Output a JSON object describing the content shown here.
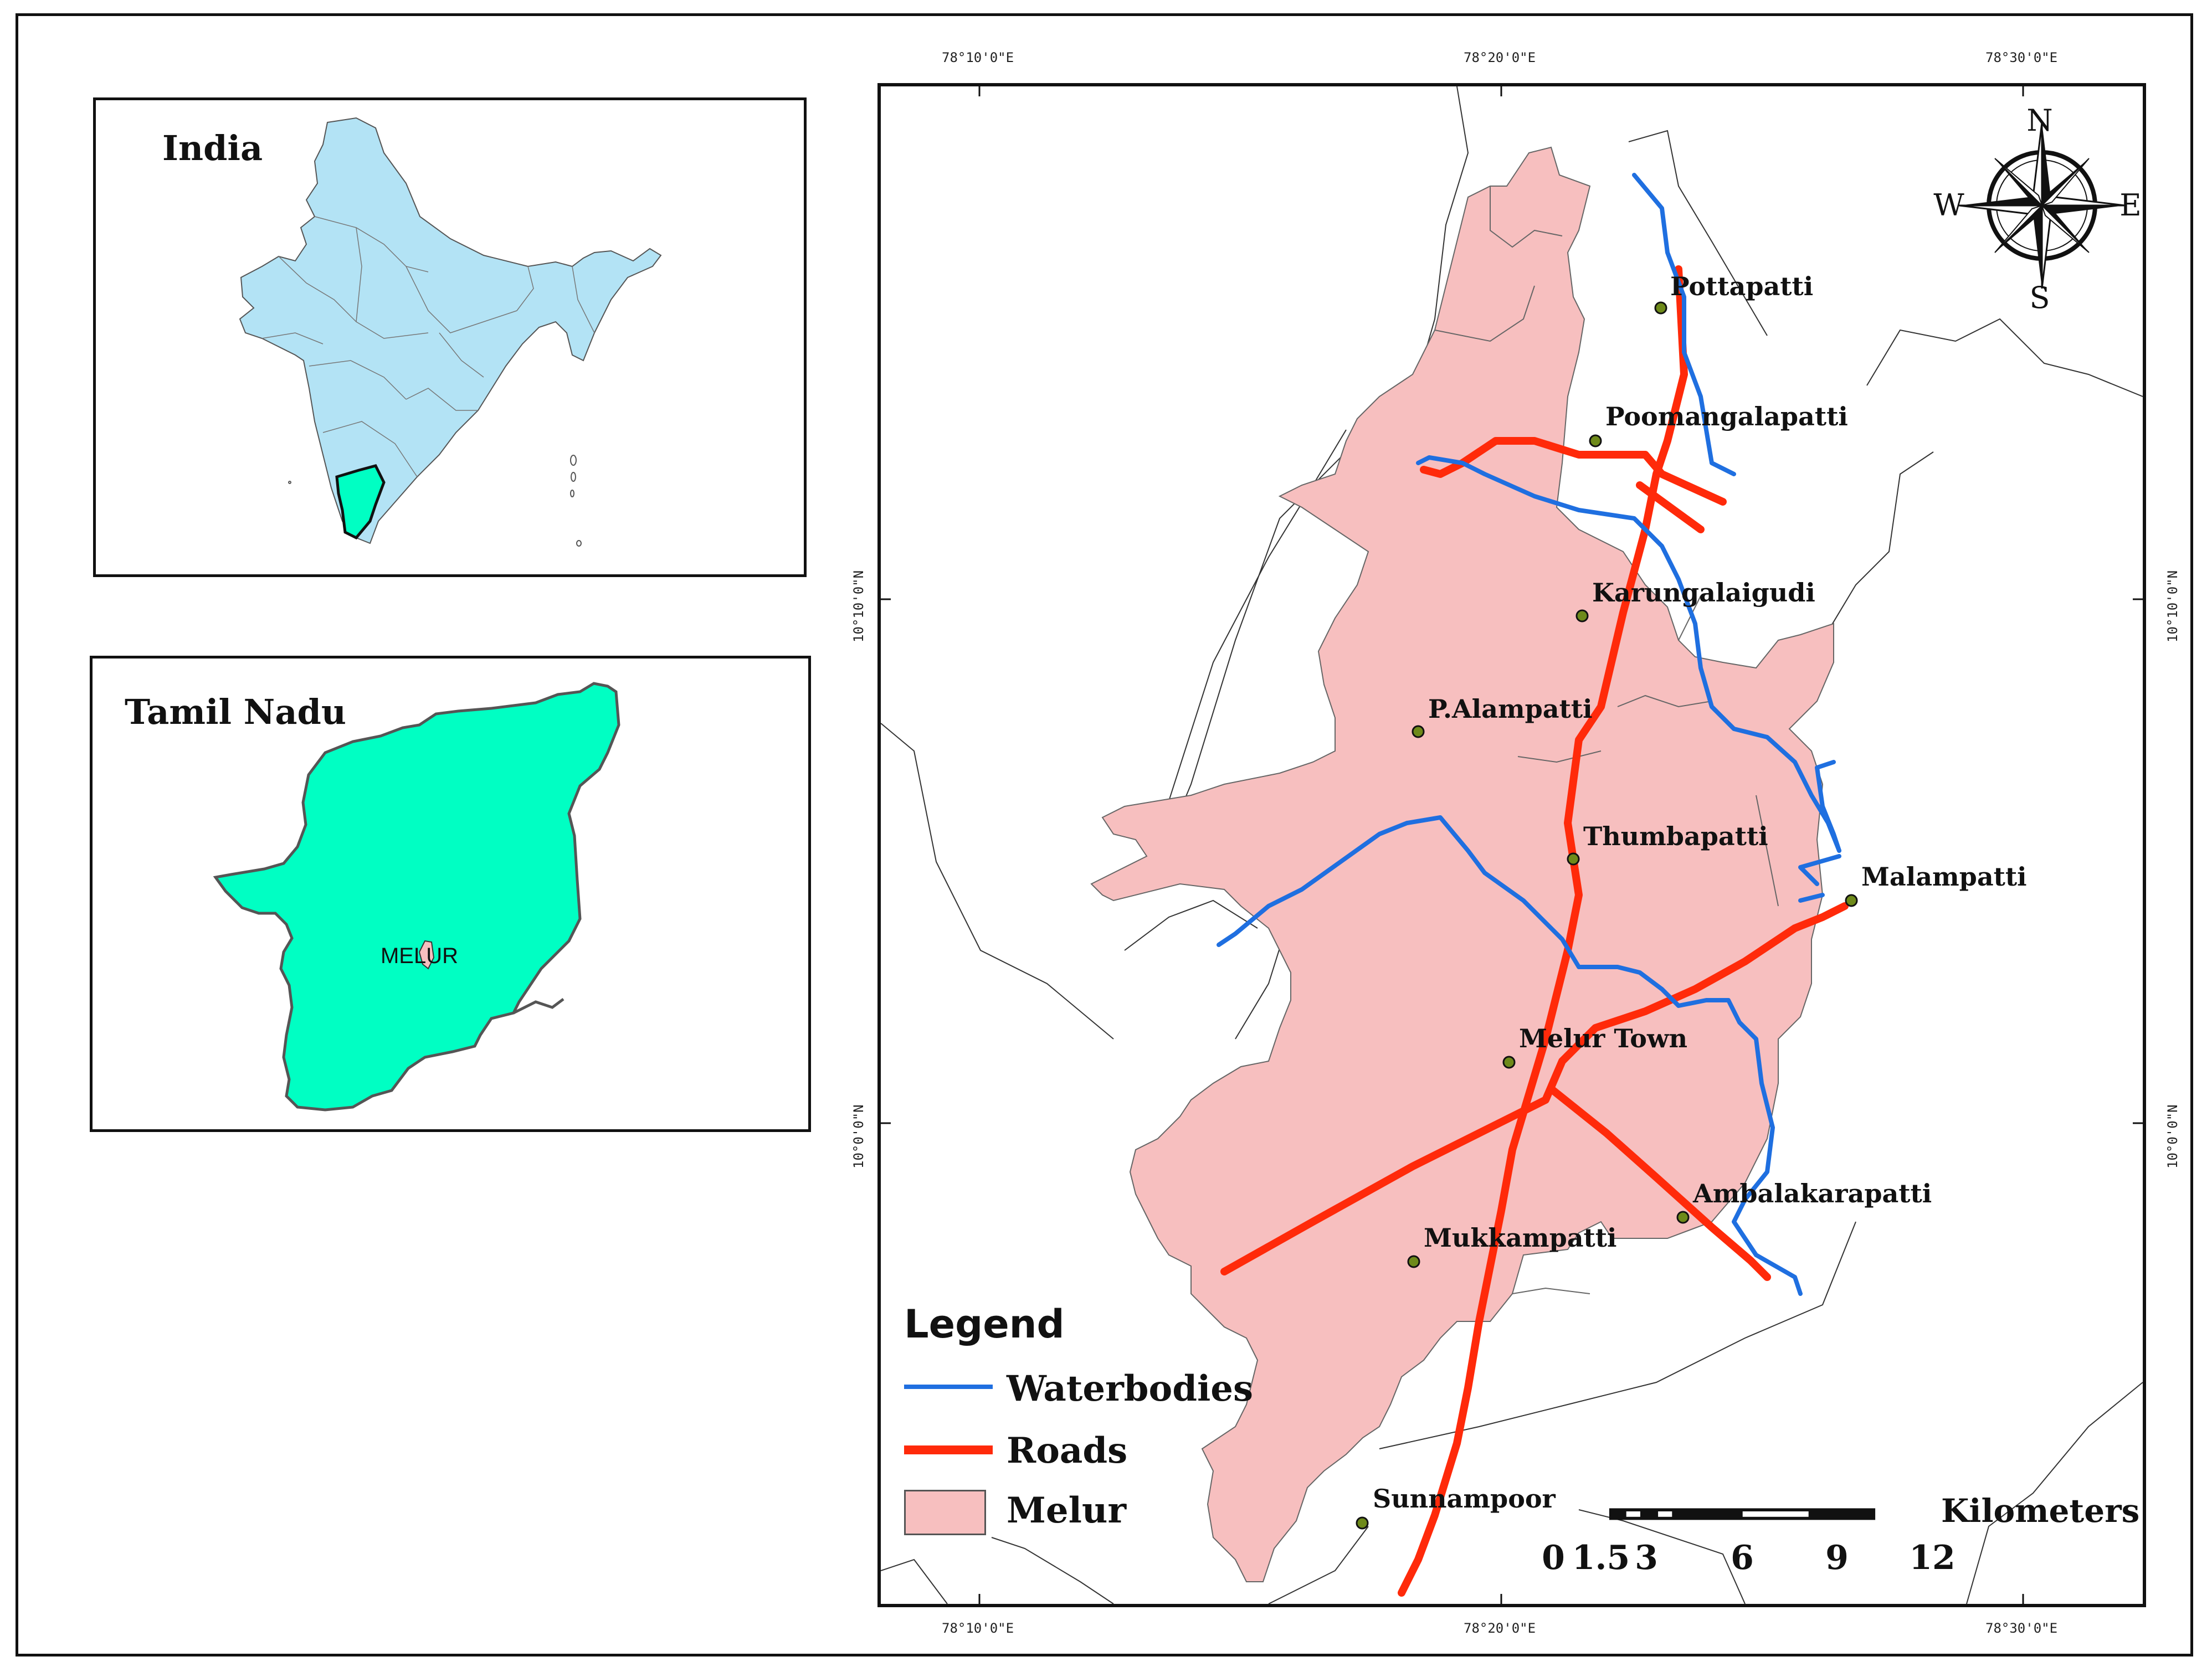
{
  "india_inset": {
    "title": "India"
  },
  "tamil_nadu_inset": {
    "title": "Tamil Nadu",
    "district_label": "MELUR"
  },
  "coordinates": {
    "top": [
      "78°10'0\"E",
      "78°20'0\"E",
      "78°30'0\"E"
    ],
    "bottom": [
      "78°10'0\"E",
      "78°20'0\"E",
      "78°30'0\"E"
    ],
    "left": [
      "10°10'0\"N",
      "10°0'0\"N"
    ],
    "right": [
      "10°10'0\"N",
      "10°0'0\"N"
    ]
  },
  "compass": {
    "n": "N",
    "s": "S",
    "e": "E",
    "w": "W"
  },
  "places": [
    "Pottapatti",
    "Poomangalapatti",
    "Karungalaigudi",
    "P.Alampatti",
    "Thumbapatti",
    "Malampatti",
    "Melur Town",
    "Ambalakarapatti",
    "Mukkampatti",
    "Sunnampoor"
  ],
  "legend": {
    "title": "Legend",
    "items": [
      {
        "label": "Waterbodies",
        "color": "#1f6fe0",
        "kind": "line"
      },
      {
        "label": "Roads",
        "color": "#ff2a0a",
        "kind": "thick-line"
      },
      {
        "label": "Melur",
        "color": "#f7bfbf",
        "kind": "fill"
      }
    ]
  },
  "scale_bar": {
    "unit": "Kilometers",
    "ticks": [
      "0",
      "1.5",
      "3",
      "6",
      "9",
      "12"
    ]
  },
  "colors": {
    "india_fill": "#b3e3f5",
    "tamil_nadu_fill": "#00ffc3",
    "melur_fill": "#f7bfbf",
    "water": "#1f6fe0",
    "road": "#ff2a0a"
  }
}
